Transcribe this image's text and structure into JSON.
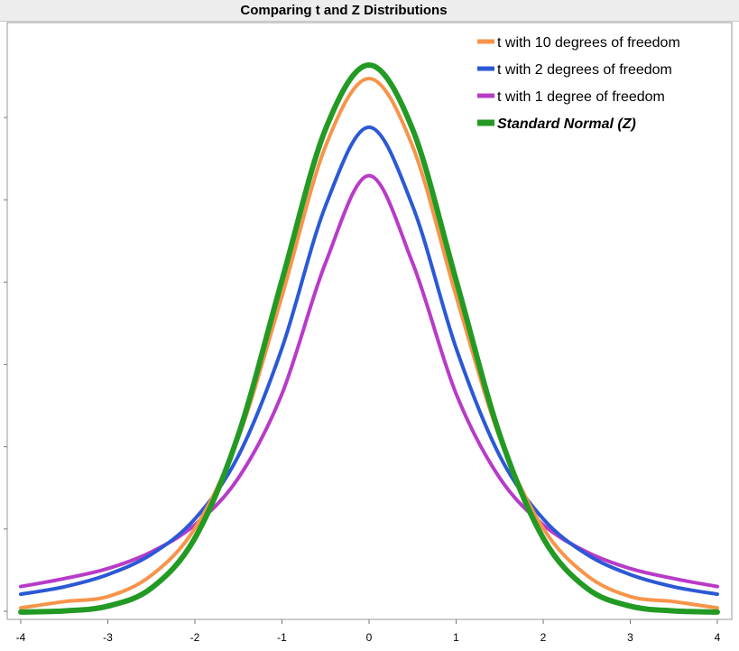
{
  "chart_data": {
    "type": "line",
    "title": "Comparing t and Z Distributions",
    "xlabel": "",
    "ylabel": "",
    "xlim": [
      -4,
      4
    ],
    "ylim": [
      0,
      0.42
    ],
    "x_ticks": [
      "-4",
      "-3",
      "-2",
      "-1",
      "0",
      "1",
      "2",
      "3",
      "4"
    ],
    "grid": false,
    "legend_position": "top-right",
    "series": [
      {
        "name": "t with 10 degrees of freedom",
        "color": "#f7944a",
        "emphasis": false,
        "x": [
          -4,
          -3.5,
          -3,
          -2.5,
          -2,
          -1.5,
          -1,
          -0.5,
          0,
          0.5,
          1,
          1.5,
          2,
          2.5,
          3,
          3.5,
          4
        ],
        "y": [
          0.0031,
          0.0077,
          0.0114,
          0.0269,
          0.0611,
          0.1274,
          0.2304,
          0.3397,
          0.3891,
          0.3397,
          0.2304,
          0.1274,
          0.0611,
          0.0269,
          0.0114,
          0.0077,
          0.0031
        ]
      },
      {
        "name": "t with 2 degrees of freedom",
        "color": "#2b59d6",
        "emphasis": false,
        "x": [
          -4,
          -3.5,
          -3,
          -2.5,
          -2,
          -1.5,
          -1,
          -0.5,
          0,
          0.5,
          1,
          1.5,
          2,
          2.5,
          3,
          3.5,
          4
        ],
        "y": [
          0.0131,
          0.0185,
          0.0274,
          0.0422,
          0.068,
          0.1141,
          0.1925,
          0.2962,
          0.3536,
          0.2962,
          0.1925,
          0.1141,
          0.068,
          0.0422,
          0.0274,
          0.0185,
          0.0131
        ]
      },
      {
        "name": "t with 1 degree of freedom",
        "color": "#b83bc8",
        "emphasis": false,
        "x": [
          -4,
          -3.5,
          -3,
          -2.5,
          -2,
          -1.5,
          -1,
          -0.5,
          0,
          0.5,
          1,
          1.5,
          2,
          2.5,
          3,
          3.5,
          4
        ],
        "y": [
          0.0187,
          0.0245,
          0.0318,
          0.0439,
          0.0637,
          0.0979,
          0.1592,
          0.2546,
          0.3183,
          0.2546,
          0.1592,
          0.0979,
          0.0637,
          0.0439,
          0.0318,
          0.0245,
          0.0187
        ]
      },
      {
        "name": "Standard Normal (Z)",
        "color": "#239a23",
        "emphasis": true,
        "x": [
          -4,
          -3.5,
          -3,
          -2.5,
          -2,
          -1.5,
          -1,
          -0.5,
          0,
          0.5,
          1,
          1.5,
          2,
          2.5,
          3,
          3.5,
          4
        ],
        "y": [
          0.0001,
          0.0009,
          0.0044,
          0.0175,
          0.054,
          0.1295,
          0.242,
          0.3521,
          0.3989,
          0.3521,
          0.242,
          0.1295,
          0.054,
          0.0175,
          0.0044,
          0.0009,
          0.0001
        ]
      }
    ]
  }
}
